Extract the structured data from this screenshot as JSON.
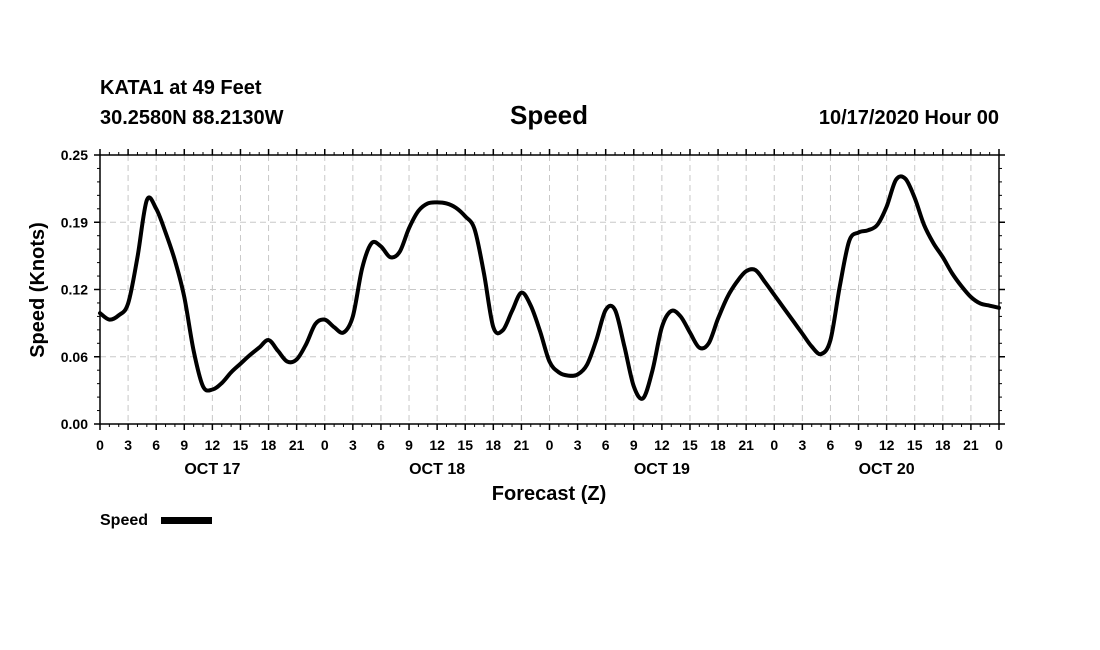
{
  "header": {
    "station": "KATA1 at 49 Feet",
    "location": "30.2580N 88.2130W",
    "title": "Speed",
    "run_time": "10/17/2020 Hour 00"
  },
  "chart_data": {
    "type": "line",
    "title": "Speed",
    "xlabel": "Forecast (Z)",
    "ylabel": "Speed (Knots)",
    "ylim": [
      0.0,
      0.25
    ],
    "xlim_hours": [
      0,
      96
    ],
    "grid": true,
    "legend": {
      "position": "bottom-left",
      "entries": [
        {
          "name": "Speed",
          "color": "#000000"
        }
      ]
    },
    "y_ticks": [
      {
        "value": 0.0,
        "label": "0.00"
      },
      {
        "value": 0.0625,
        "label": "0.06"
      },
      {
        "value": 0.125,
        "label": "0.12"
      },
      {
        "value": 0.1875,
        "label": "0.19"
      },
      {
        "value": 0.25,
        "label": "0.25"
      }
    ],
    "x_ticks": [
      {
        "hour": 0,
        "label": "0"
      },
      {
        "hour": 3,
        "label": "3"
      },
      {
        "hour": 6,
        "label": "6"
      },
      {
        "hour": 9,
        "label": "9"
      },
      {
        "hour": 12,
        "label": "12"
      },
      {
        "hour": 15,
        "label": "15"
      },
      {
        "hour": 18,
        "label": "18"
      },
      {
        "hour": 21,
        "label": "21"
      },
      {
        "hour": 24,
        "label": "0"
      },
      {
        "hour": 27,
        "label": "3"
      },
      {
        "hour": 30,
        "label": "6"
      },
      {
        "hour": 33,
        "label": "9"
      },
      {
        "hour": 36,
        "label": "12"
      },
      {
        "hour": 39,
        "label": "15"
      },
      {
        "hour": 42,
        "label": "18"
      },
      {
        "hour": 45,
        "label": "21"
      },
      {
        "hour": 48,
        "label": "0"
      },
      {
        "hour": 51,
        "label": "3"
      },
      {
        "hour": 54,
        "label": "6"
      },
      {
        "hour": 57,
        "label": "9"
      },
      {
        "hour": 60,
        "label": "12"
      },
      {
        "hour": 63,
        "label": "15"
      },
      {
        "hour": 66,
        "label": "18"
      },
      {
        "hour": 69,
        "label": "21"
      },
      {
        "hour": 72,
        "label": "0"
      },
      {
        "hour": 75,
        "label": "3"
      },
      {
        "hour": 78,
        "label": "6"
      },
      {
        "hour": 81,
        "label": "9"
      },
      {
        "hour": 84,
        "label": "12"
      },
      {
        "hour": 87,
        "label": "15"
      },
      {
        "hour": 90,
        "label": "18"
      },
      {
        "hour": 93,
        "label": "21"
      },
      {
        "hour": 96,
        "label": "0"
      }
    ],
    "day_labels": [
      {
        "hour": 12,
        "label": "OCT 17"
      },
      {
        "hour": 36,
        "label": "OCT 18"
      },
      {
        "hour": 60,
        "label": "OCT 19"
      },
      {
        "hour": 84,
        "label": "OCT 20"
      }
    ],
    "series": [
      {
        "name": "Speed",
        "color": "#000000",
        "x": [
          0,
          1,
          2,
          3,
          4,
          5,
          6,
          7,
          8,
          9,
          10,
          11,
          12,
          13,
          14,
          15,
          16,
          17,
          18,
          19,
          20,
          21,
          22,
          23,
          24,
          25,
          26,
          27,
          28,
          29,
          30,
          31,
          32,
          33,
          34,
          35,
          36,
          37,
          38,
          39,
          40,
          41,
          42,
          43,
          44,
          45,
          46,
          47,
          48,
          49,
          50,
          51,
          52,
          53,
          54,
          55,
          56,
          57,
          58,
          59,
          60,
          61,
          62,
          63,
          64,
          65,
          66,
          67,
          68,
          69,
          70,
          71,
          72,
          73,
          74,
          75,
          76,
          77,
          78,
          79,
          80,
          81,
          82,
          83,
          84,
          85,
          86,
          87,
          88,
          89,
          90,
          91,
          92,
          93,
          94,
          95,
          96
        ],
        "values": [
          0.103,
          0.097,
          0.101,
          0.112,
          0.155,
          0.208,
          0.2,
          0.178,
          0.152,
          0.118,
          0.068,
          0.035,
          0.032,
          0.038,
          0.048,
          0.056,
          0.064,
          0.071,
          0.078,
          0.068,
          0.058,
          0.06,
          0.074,
          0.093,
          0.097,
          0.09,
          0.085,
          0.1,
          0.145,
          0.168,
          0.165,
          0.155,
          0.16,
          0.182,
          0.198,
          0.205,
          0.206,
          0.205,
          0.201,
          0.193,
          0.181,
          0.14,
          0.09,
          0.087,
          0.105,
          0.122,
          0.11,
          0.086,
          0.058,
          0.048,
          0.045,
          0.046,
          0.055,
          0.078,
          0.106,
          0.106,
          0.072,
          0.035,
          0.024,
          0.05,
          0.09,
          0.105,
          0.1,
          0.085,
          0.071,
          0.075,
          0.098,
          0.118,
          0.132,
          0.142,
          0.143,
          0.132,
          0.12,
          0.108,
          0.096,
          0.084,
          0.072,
          0.065,
          0.078,
          0.128,
          0.17,
          0.178,
          0.18,
          0.185,
          0.202,
          0.227,
          0.228,
          0.21,
          0.185,
          0.168,
          0.155,
          0.14,
          0.128,
          0.118,
          0.112,
          0.11,
          0.108
        ]
      }
    ]
  }
}
